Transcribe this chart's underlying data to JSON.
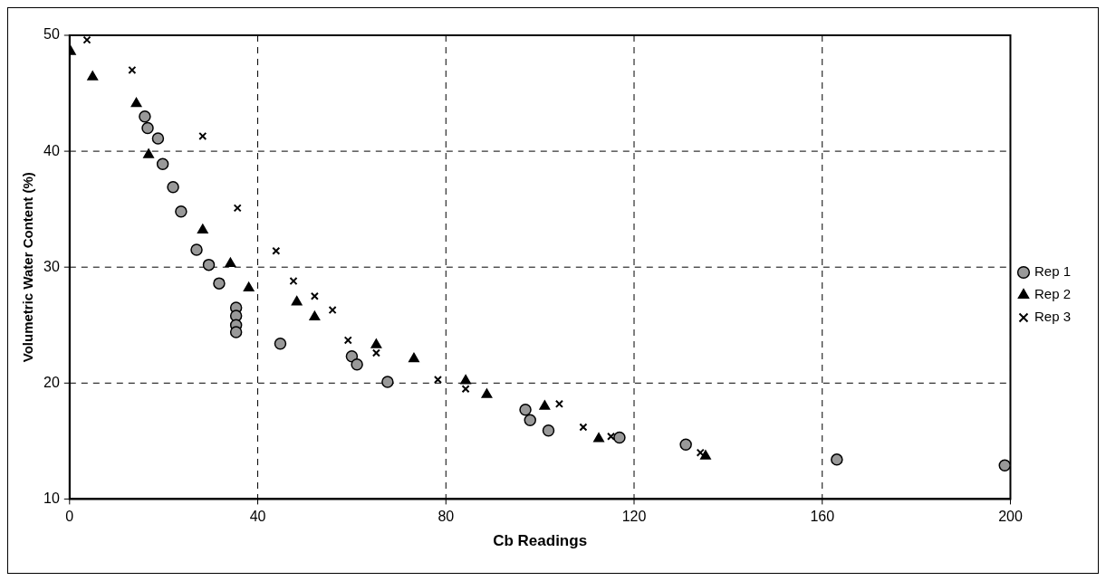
{
  "chart_data": {
    "type": "scatter",
    "xlabel": "Cb Readings",
    "ylabel": "Volumetric Water Content (%)",
    "xlim": [
      0,
      200
    ],
    "xticks": [
      0,
      40,
      80,
      120,
      160,
      200
    ],
    "ylim": [
      10,
      50
    ],
    "yticks": [
      10,
      20,
      30,
      40,
      50
    ],
    "grid": true,
    "legend": "right",
    "series": [
      {
        "name": "Rep 1",
        "color": "#999999",
        "marker": "circle",
        "x": [
          16.0,
          16.6,
          18.8,
          19.8,
          22.0,
          23.7,
          27.0,
          29.6,
          31.8,
          35.4,
          35.4,
          35.4,
          35.4,
          44.8,
          60.0,
          61.1,
          67.6,
          96.9,
          97.9,
          101.8,
          116.9,
          131.0,
          163.1,
          198.8
        ],
        "values": [
          43.0,
          42.0,
          41.1,
          38.9,
          36.9,
          34.8,
          31.5,
          30.2,
          28.6,
          26.5,
          25.8,
          25.0,
          24.4,
          23.4,
          22.3,
          21.6,
          20.1,
          17.7,
          16.8,
          15.9,
          15.3,
          14.7,
          13.4,
          12.9
        ]
      },
      {
        "name": "Rep 2",
        "color": "#000000",
        "marker": "triangle",
        "x": [
          0.2,
          4.9,
          14.2,
          16.8,
          28.3,
          34.2,
          38.1,
          48.3,
          52.1,
          65.2,
          73.2,
          84.2,
          88.7,
          101.0,
          112.5,
          135.2
        ],
        "values": [
          48.6,
          46.4,
          44.1,
          39.7,
          33.2,
          30.3,
          28.2,
          27.0,
          25.7,
          23.3,
          22.1,
          20.2,
          19.0,
          18.0,
          15.2,
          13.7
        ]
      },
      {
        "name": "Rep 3",
        "color": "#000000",
        "marker": "cross",
        "x": [
          3.7,
          13.3,
          28.3,
          35.7,
          43.9,
          47.6,
          52.1,
          55.9,
          59.2,
          65.2,
          78.3,
          84.2,
          104.1,
          109.2,
          115.1,
          134.1
        ],
        "values": [
          49.6,
          47.0,
          41.3,
          35.1,
          31.4,
          28.8,
          27.5,
          26.3,
          23.7,
          22.6,
          20.3,
          19.5,
          18.2,
          16.2,
          15.4,
          14.0
        ]
      }
    ]
  }
}
